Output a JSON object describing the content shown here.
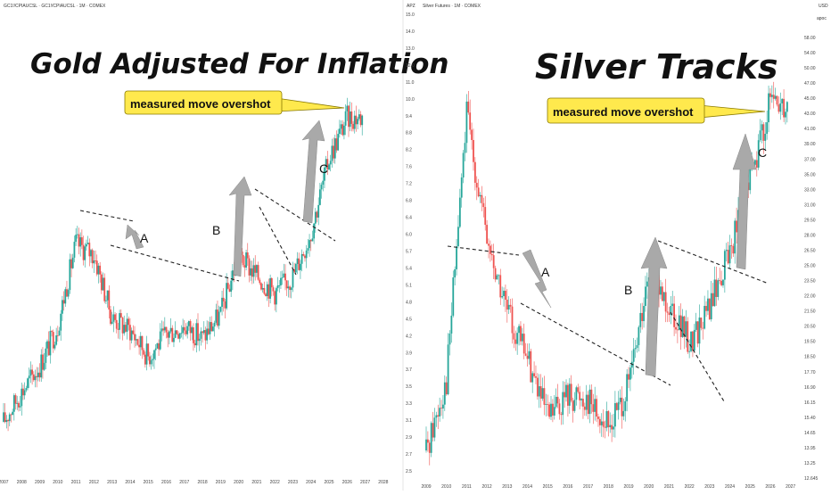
{
  "colors": {
    "up": "#26a69a",
    "down": "#ef5350",
    "arrow_fill": "#a9a9a9",
    "callout_bg": "#ffe94d",
    "dashes": "#222222"
  },
  "chart_data": [
    {
      "type": "candlestick",
      "symbol_line": "GC1!/CPIAUCSL · GC1!/CPIAUCSL · 1M · COMEX",
      "title": "Gold Adjusted For Inflation",
      "callout": "measured move overshot",
      "annotations": [
        "A",
        "B",
        "C"
      ],
      "x_ticks": [
        "2007",
        "2008",
        "2009",
        "2010",
        "2011",
        "2012",
        "2013",
        "2014",
        "2015",
        "2016",
        "2017",
        "2018",
        "2019",
        "2020",
        "2021",
        "2022",
        "2023",
        "2024",
        "2025",
        "2026",
        "2027",
        "2028"
      ],
      "x_range": [
        2007.0,
        2028.5
      ],
      "y_range": [
        2.5,
        19.5
      ],
      "y_scale": "log",
      "series_yearly": {
        "years": [
          2007,
          2008,
          2009,
          2010,
          2011,
          2012,
          2013,
          2014,
          2015,
          2016,
          2017,
          2018,
          2019,
          2020,
          2021,
          2022,
          2023,
          2024,
          2025,
          2026
        ],
        "values": [
          3.2,
          3.7,
          4.2,
          5.1,
          7.6,
          7.2,
          5.3,
          5.0,
          4.4,
          4.9,
          5.1,
          4.8,
          5.4,
          7.2,
          6.5,
          6.0,
          6.5,
          8.0,
          11.5,
          14.0
        ]
      }
    },
    {
      "type": "candlestick",
      "symbol_line": "Silver Futures · 1M · COMEX",
      "title": "Silver Tracks",
      "callout": "measured move overshot",
      "annotations": [
        "A",
        "B",
        "C"
      ],
      "price_axis_unit": "USD",
      "price_axis_note": "apoc",
      "left_axis_label": "APZ",
      "left_ticks": [
        "15.0",
        "14.0",
        "13.0",
        "12.0",
        "11.0",
        "10.0",
        "9.4",
        "8.8",
        "8.2",
        "7.6",
        "7.2",
        "6.8",
        "6.4",
        "6.0",
        "5.7",
        "5.4",
        "5.1",
        "4.8",
        "4.5",
        "4.2",
        "3.9",
        "3.7",
        "3.5",
        "3.3",
        "3.1",
        "2.9",
        "2.7",
        "2.5"
      ],
      "right_ticks": [
        "58.00",
        "54.00",
        "50.00",
        "47.00",
        "45.00",
        "43.00",
        "41.00",
        "39.00",
        "37.00",
        "35.00",
        "33.00",
        "31.00",
        "29.50",
        "28.00",
        "26.50",
        "25.00",
        "23.50",
        "22.00",
        "21.50",
        "20.50",
        "19.50",
        "18.50",
        "17.70",
        "16.90",
        "16.15",
        "15.40",
        "14.65",
        "13.95",
        "13.25",
        "12.645"
      ],
      "x_ticks": [
        "2009",
        "2010",
        "2011",
        "2012",
        "2013",
        "2014",
        "2015",
        "2016",
        "2017",
        "2018",
        "2019",
        "2020",
        "2021",
        "2022",
        "2023",
        "2024",
        "2025",
        "2026",
        "2027"
      ],
      "x_range": [
        2009.0,
        2027.5
      ],
      "y_range": [
        12.5,
        60.0
      ],
      "y_scale": "log",
      "series_yearly": {
        "years": [
          2009,
          2010,
          2011,
          2012,
          2013,
          2014,
          2015,
          2016,
          2017,
          2018,
          2019,
          2020,
          2021,
          2022,
          2023,
          2024,
          2025,
          2026
        ],
        "values": [
          13.8,
          18.0,
          48.0,
          30.0,
          23.0,
          19.5,
          15.5,
          17.0,
          16.8,
          15.0,
          17.5,
          26.0,
          24.0,
          20.5,
          23.5,
          29.0,
          38.0,
          50.0
        ]
      }
    }
  ]
}
